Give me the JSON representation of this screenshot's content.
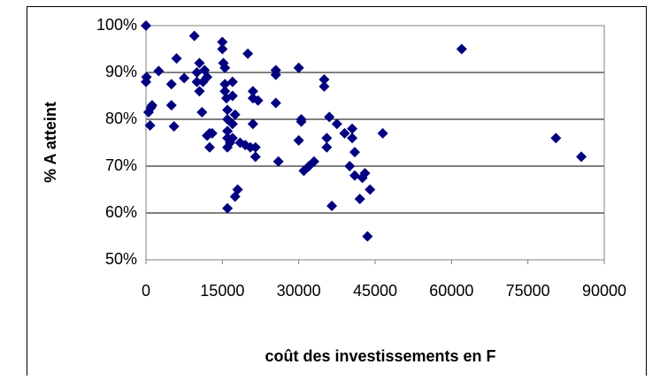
{
  "chart_data": {
    "type": "scatter",
    "xlabel": "coût des investissements en F",
    "ylabel": "% A atteint",
    "color": "#000080",
    "grid": true,
    "xlim": [
      0,
      90000
    ],
    "xticks": [
      0,
      15000,
      30000,
      45000,
      60000,
      75000,
      90000
    ],
    "ylim": [
      50,
      100
    ],
    "yticks": [
      {
        "value": 50,
        "label": "50%"
      },
      {
        "value": 60,
        "label": "60%"
      },
      {
        "value": 70,
        "label": "70%"
      },
      {
        "value": 80,
        "label": "80%"
      },
      {
        "value": 90,
        "label": "90%"
      },
      {
        "value": 100,
        "label": "100%"
      }
    ],
    "x": [
      0,
      0,
      100,
      500,
      800,
      1000,
      1200,
      2500,
      5000,
      5000,
      5500,
      6000,
      7500,
      9500,
      10000,
      10000,
      10500,
      10500,
      11000,
      11200,
      11500,
      12000,
      12500,
      12500,
      13000,
      12000,
      15000,
      15000,
      15200,
      15500,
      15500,
      15500,
      15800,
      16000,
      16000,
      16000,
      16000,
      16000,
      16000,
      16500,
      17000,
      17000,
      17000,
      17000,
      17500,
      17500,
      18000,
      18500,
      19500,
      20000,
      20500,
      21000,
      21000,
      21000,
      21500,
      21500,
      22000,
      25500,
      25500,
      25500,
      26000,
      30000,
      30000,
      30500,
      30500,
      31000,
      32000,
      33000,
      35000,
      35000,
      35500,
      35500,
      36000,
      36500,
      37500,
      39000,
      40000,
      40500,
      40500,
      41000,
      41000,
      42000,
      42500,
      43000,
      43500,
      44000,
      46500,
      62000,
      80500,
      85500
    ],
    "y": [
      100,
      88,
      89,
      81.5,
      78.7,
      82.5,
      83,
      90.3,
      87.5,
      83,
      78.5,
      93,
      88.8,
      97.8,
      90,
      88,
      86,
      92,
      81.5,
      88,
      90.5,
      76.5,
      77,
      74,
      77,
      89,
      96.5,
      95,
      92,
      91,
      87.5,
      86,
      84.5,
      82,
      80,
      77.5,
      76,
      74,
      61,
      75,
      88,
      85,
      79,
      76,
      81,
      63.5,
      65,
      75,
      74.5,
      94,
      74,
      86,
      84.5,
      79,
      72,
      74,
      84,
      89.5,
      90.5,
      83.5,
      71,
      91,
      75.5,
      80,
      79.5,
      69,
      70,
      71,
      88.5,
      87,
      76,
      74,
      80.5,
      61.5,
      79,
      77,
      70,
      76,
      78,
      68,
      73,
      63,
      67.5,
      68.5,
      55,
      65,
      77,
      95,
      76,
      72
    ]
  }
}
